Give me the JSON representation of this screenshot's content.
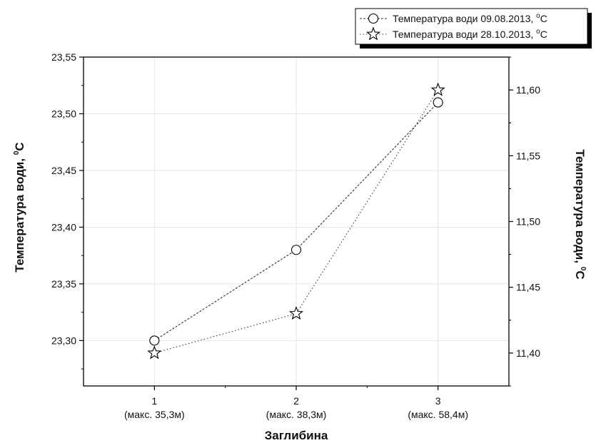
{
  "chart_data": {
    "type": "line",
    "categories": [
      {
        "x": "1",
        "sub": "(макс. 35,3м)"
      },
      {
        "x": "2",
        "sub": "(макс. 38,3м)"
      },
      {
        "x": "3",
        "sub": "(макс. 58,4м)"
      }
    ],
    "x_values": [
      1,
      2,
      3
    ],
    "xlim": [
      0.5,
      3.5
    ],
    "xlabel": "Заглибина",
    "ylabel_left": "Температура води, ",
    "ylabel_left_sup": "0",
    "ylabel_left_unit": "C",
    "ylabel_right": "Температура води, ",
    "ylabel_right_sup": "0",
    "ylabel_right_unit": "C",
    "ylim_left": [
      23.26,
      23.55
    ],
    "yticks_left": [
      "23,30",
      "23,35",
      "23,40",
      "23,45",
      "23,50",
      "23,55"
    ],
    "ylim_right": [
      11.375,
      11.625
    ],
    "yticks_right": [
      "11,40",
      "11,45",
      "11,50",
      "11,55",
      "11,60"
    ],
    "grid": true,
    "legend_position": "top-right",
    "series": [
      {
        "name": "Температура води 09.08.2013, ",
        "name_sup": "o",
        "name_unit": "C",
        "axis": "left",
        "marker": "circle",
        "values": [
          23.3,
          23.38,
          23.51
        ]
      },
      {
        "name": "Температура води 28.10.2013, ",
        "name_sup": "o",
        "name_unit": "C",
        "axis": "right",
        "marker": "star",
        "values": [
          11.4,
          11.43,
          11.6
        ]
      }
    ]
  }
}
